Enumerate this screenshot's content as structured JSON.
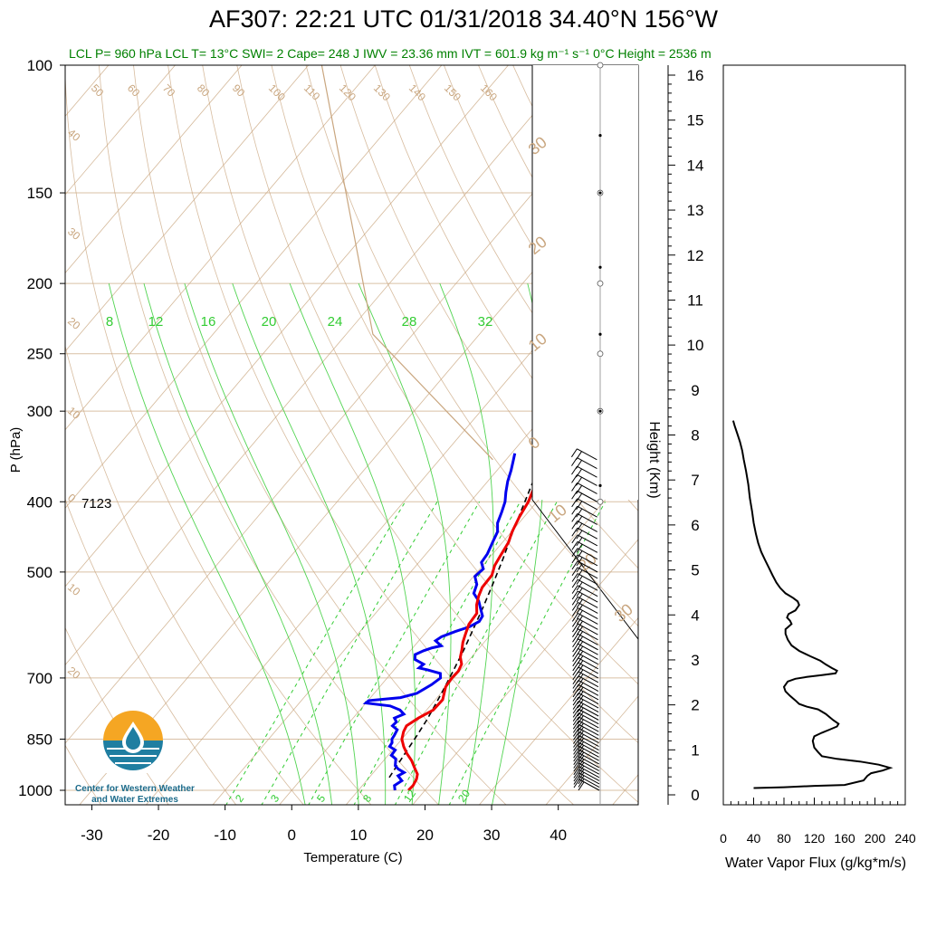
{
  "header": {
    "title": "AF307: 22:21 UTC 01/31/2018  34.40°N 156°W",
    "subtitle": "LCL P= 960 hPa  LCL T= 13°C  SWI= 2  Cape= 248 J  IWV = 23.36 mm  IVT = 601.9 kg m⁻¹ s⁻¹  0°C Height = 2536 m"
  },
  "logo": {
    "line1": "Center for Western Weather",
    "line2": "and Water Extremes"
  },
  "colors": {
    "temperature": "#ee0000",
    "dewpoint": "#0000ee",
    "mixing_ratio": "#33cc33",
    "adiabat": "#c9a67f",
    "parcel": "#000000",
    "subtitle": "#008000"
  },
  "chart_data": [
    {
      "type": "line",
      "title": "",
      "xlabel": "Temperature (C)",
      "ylabel": "P (hPa)",
      "y_scale": "log",
      "xlim": [
        -34,
        52
      ],
      "ylim": [
        1050,
        100
      ],
      "x_ticks": [
        -30,
        -20,
        -10,
        0,
        10,
        20,
        30,
        40
      ],
      "y_ticks": [
        100,
        150,
        200,
        250,
        300,
        400,
        500,
        700,
        850,
        1000
      ],
      "annotation": "7123",
      "mixing_ratio_labels_top": [
        "8",
        "12",
        "16",
        "20",
        "24",
        "28",
        "32"
      ],
      "mixing_ratio_labels_bottom": [
        "2",
        "3",
        "5",
        "8",
        "12",
        "20"
      ],
      "dry_adiabat_labels": [
        "50",
        "60",
        "70",
        "80",
        "90",
        "100",
        "110",
        "120",
        "130",
        "140",
        "150",
        "160"
      ],
      "isotherm_labels_left": [
        "40",
        "30",
        "20",
        "10",
        "0",
        "10",
        "20"
      ],
      "isotherm_labels_right": [
        "30",
        "20",
        "10",
        "0",
        "10",
        "20",
        "30"
      ],
      "series": [
        {
          "points": [
            [
              17.5,
              1000
            ],
            [
              17.6,
              985
            ],
            [
              17.3,
              965
            ],
            [
              16.8,
              950
            ],
            [
              15.5,
              930
            ],
            [
              14.2,
              910
            ],
            [
              12.6,
              890
            ],
            [
              11.2,
              870
            ],
            [
              10.0,
              850
            ],
            [
              9.3,
              830
            ],
            [
              9.0,
              815
            ],
            [
              9.8,
              795
            ],
            [
              11.0,
              775
            ],
            [
              11.1,
              750
            ],
            [
              10.5,
              735
            ],
            [
              9.9,
              720
            ],
            [
              9.7,
              700
            ],
            [
              9.8,
              685
            ],
            [
              9.4,
              670
            ],
            [
              8.3,
              655
            ],
            [
              7.6,
              640
            ],
            [
              6.8,
              625
            ],
            [
              6.2,
              610
            ],
            [
              5.4,
              590
            ],
            [
              5.2,
              570
            ],
            [
              4.1,
              555
            ],
            [
              3.3,
              540
            ],
            [
              2.7,
              525
            ],
            [
              2.6,
              505
            ],
            [
              1.8,
              490
            ],
            [
              1.4,
              475
            ],
            [
              0.9,
              455
            ],
            [
              0.1,
              440
            ],
            [
              -0.7,
              420
            ],
            [
              -1.3,
              400
            ],
            [
              -2.1,
              385
            ],
            [
              -2.8,
              370
            ],
            [
              -3.6,
              355
            ],
            [
              -4.3,
              343
            ]
          ]
        },
        {
          "points": [
            [
              15.5,
              1000
            ],
            [
              14.8,
              985
            ],
            [
              15.3,
              970
            ],
            [
              14.1,
              955
            ],
            [
              14.6,
              945
            ],
            [
              13.3,
              935
            ],
            [
              12.4,
              925
            ],
            [
              11.6,
              905
            ],
            [
              10.5,
              895
            ],
            [
              10.4,
              880
            ],
            [
              9.1,
              870
            ],
            [
              9.0,
              860
            ],
            [
              8.5,
              850
            ],
            [
              8.4,
              840
            ],
            [
              8.1,
              825
            ],
            [
              6.9,
              815
            ],
            [
              7.0,
              805
            ],
            [
              6.2,
              795
            ],
            [
              7.1,
              785
            ],
            [
              6.0,
              775
            ],
            [
              4.0,
              765
            ],
            [
              0.0,
              758
            ],
            [
              0.1,
              752
            ],
            [
              4.5,
              745
            ],
            [
              6.4,
              735
            ],
            [
              7.5,
              715
            ],
            [
              8.0,
              700
            ],
            [
              7.4,
              690
            ],
            [
              5.0,
              682
            ],
            [
              3.5,
              678
            ],
            [
              3.7,
              670
            ],
            [
              1.8,
              660
            ],
            [
              1.2,
              650
            ],
            [
              2.0,
              642
            ],
            [
              2.9,
              636
            ],
            [
              4.0,
              632
            ],
            [
              2.5,
              622
            ],
            [
              2.9,
              614
            ],
            [
              4.3,
              604
            ],
            [
              5.8,
              595
            ],
            [
              6.6,
              585
            ],
            [
              6.4,
              575
            ],
            [
              5.2,
              562
            ],
            [
              3.9,
              548
            ],
            [
              2.2,
              535
            ],
            [
              1.5,
              520
            ],
            [
              0.2,
              507
            ],
            [
              0.5,
              495
            ],
            [
              -0.6,
              485
            ],
            [
              -0.8,
              472
            ],
            [
              -1.5,
              455
            ],
            [
              -2.1,
              440
            ],
            [
              -3.2,
              428
            ],
            [
              -4.0,
              413
            ],
            [
              -4.8,
              400
            ],
            [
              -5.9,
              388
            ],
            [
              -7.0,
              375
            ],
            [
              -7.9,
              362
            ],
            [
              -8.9,
              350
            ],
            [
              -9.5,
              343
            ]
          ]
        },
        {
          "points": [
            [
              13.0,
              960
            ],
            [
              12.6,
              920
            ],
            [
              12.2,
              880
            ],
            [
              11.8,
              840
            ],
            [
              11.3,
              800
            ],
            [
              10.6,
              760
            ],
            [
              9.8,
              720
            ],
            [
              8.9,
              680
            ],
            [
              7.9,
              640
            ],
            [
              6.7,
              600
            ],
            [
              5.4,
              560
            ],
            [
              3.9,
              520
            ],
            [
              2.2,
              480
            ],
            [
              0.2,
              440
            ],
            [
              -1.3,
              410
            ],
            [
              -2.9,
              380
            ],
            [
              -4.3,
              355
            ]
          ]
        }
      ]
    },
    {
      "type": "line",
      "title": "",
      "xlabel": "",
      "ylabel": "Height (Km)",
      "ylim": [
        0,
        16
      ],
      "y_ticks": [
        0,
        1,
        2,
        3,
        4,
        5,
        6,
        7,
        8,
        9,
        10,
        11,
        12,
        13,
        14,
        15,
        16
      ],
      "wind_barbs": "wind barbs along the right edge of the skew-T from about 1000 to 340 hPa"
    },
    {
      "type": "line",
      "title": "",
      "xlabel": "Water Vapor Flux (g/kg*m/s)",
      "ylabel": "",
      "xlim": [
        0,
        240
      ],
      "ylim": [
        0,
        16
      ],
      "x_ticks": [
        0,
        40,
        80,
        120,
        160,
        200,
        240
      ],
      "series": [
        {
          "points": [
            [
              40,
              0.15
            ],
            [
              80,
              0.17
            ],
            [
              120,
              0.2
            ],
            [
              160,
              0.22
            ],
            [
              185,
              0.32
            ],
            [
              190,
              0.42
            ],
            [
              195,
              0.48
            ],
            [
              210,
              0.54
            ],
            [
              220,
              0.6
            ],
            [
              205,
              0.67
            ],
            [
              180,
              0.74
            ],
            [
              150,
              0.8
            ],
            [
              130,
              0.86
            ],
            [
              125,
              0.95
            ],
            [
              120,
              1.05
            ],
            [
              118,
              1.2
            ],
            [
              120,
              1.3
            ],
            [
              130,
              1.38
            ],
            [
              140,
              1.45
            ],
            [
              150,
              1.52
            ],
            [
              152,
              1.58
            ],
            [
              145,
              1.66
            ],
            [
              135,
              1.8
            ],
            [
              125,
              1.9
            ],
            [
              110,
              1.96
            ],
            [
              100,
              2.02
            ],
            [
              95,
              2.1
            ],
            [
              88,
              2.2
            ],
            [
              82,
              2.3
            ],
            [
              80,
              2.4
            ],
            [
              85,
              2.52
            ],
            [
              95,
              2.58
            ],
            [
              110,
              2.62
            ],
            [
              130,
              2.66
            ],
            [
              148,
              2.7
            ],
            [
              150,
              2.76
            ],
            [
              143,
              2.82
            ],
            [
              135,
              2.9
            ],
            [
              128,
              2.98
            ],
            [
              115,
              3.08
            ],
            [
              100,
              3.2
            ],
            [
              90,
              3.32
            ],
            [
              85,
              3.45
            ],
            [
              82,
              3.58
            ],
            [
              82,
              3.68
            ],
            [
              86,
              3.74
            ],
            [
              90,
              3.8
            ],
            [
              88,
              3.87
            ],
            [
              84,
              3.94
            ],
            [
              86,
              4.02
            ],
            [
              95,
              4.1
            ],
            [
              100,
              4.22
            ],
            [
              98,
              4.3
            ],
            [
              92,
              4.38
            ],
            [
              82,
              4.48
            ],
            [
              75,
              4.6
            ],
            [
              70,
              4.72
            ],
            [
              65,
              4.88
            ],
            [
              60,
              5.05
            ],
            [
              55,
              5.22
            ],
            [
              50,
              5.4
            ],
            [
              46,
              5.6
            ],
            [
              43,
              5.8
            ],
            [
              40,
              6.05
            ],
            [
              38,
              6.3
            ],
            [
              35,
              6.6
            ],
            [
              33,
              6.9
            ],
            [
              30,
              7.2
            ],
            [
              27,
              7.45
            ],
            [
              25,
              7.65
            ],
            [
              22,
              7.85
            ],
            [
              18,
              8.05
            ],
            [
              15,
              8.2
            ],
            [
              13,
              8.32
            ]
          ]
        }
      ]
    }
  ]
}
